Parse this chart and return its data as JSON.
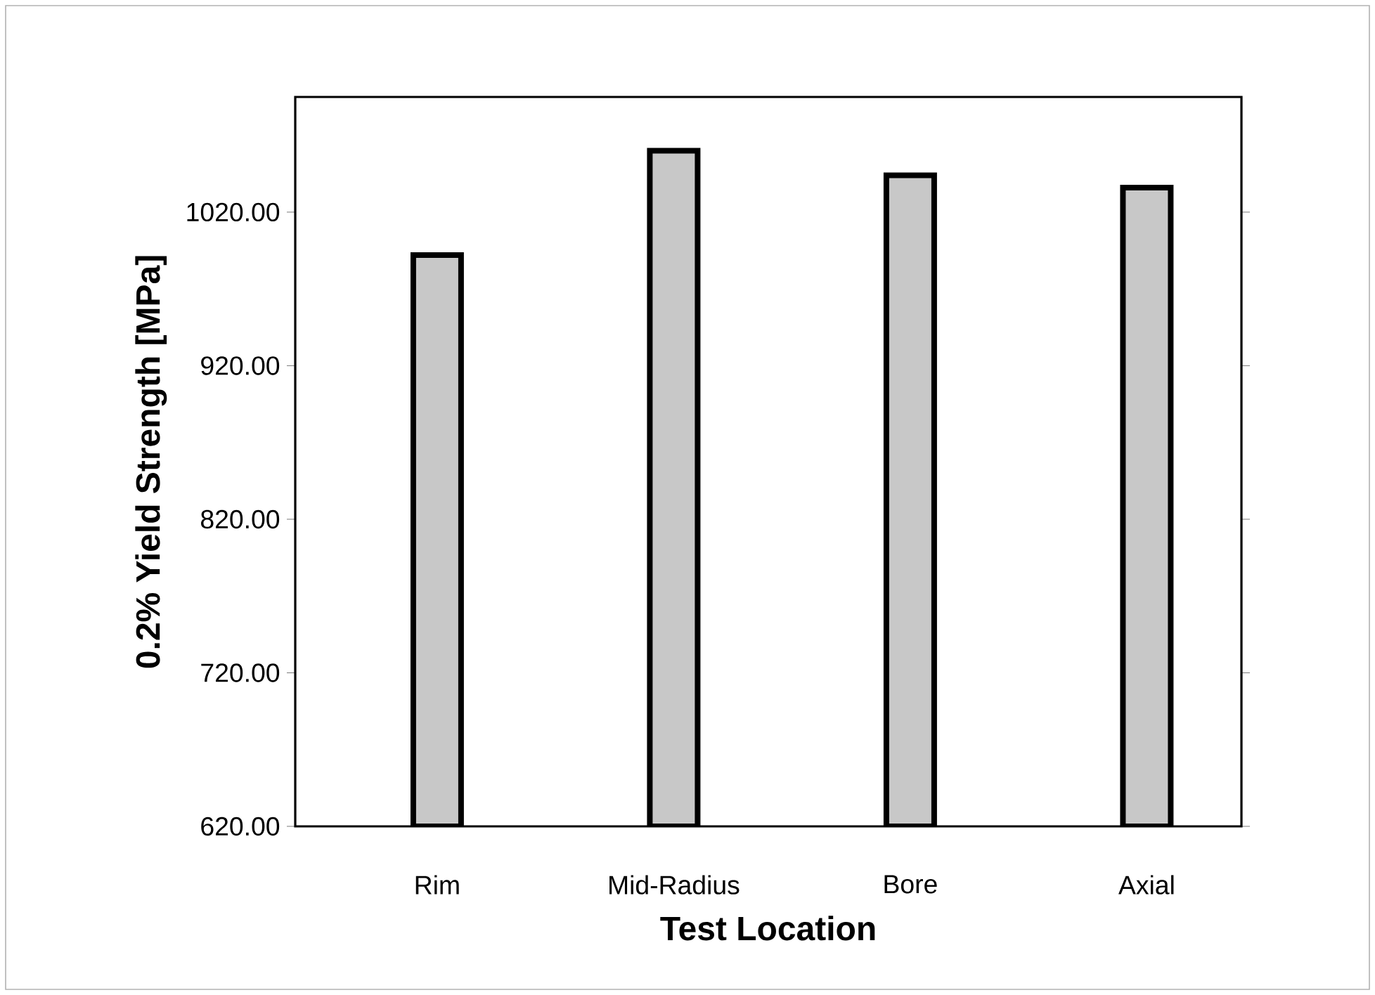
{
  "chart_data": {
    "type": "bar",
    "xlabel": "Test Location",
    "ylabel": "0.2% Yield Strength [MPa]",
    "categories": [
      "Rim",
      "Mid-Radius",
      "Bore",
      "Axial"
    ],
    "values": [
      992,
      1060,
      1044,
      1036
    ],
    "color": "#c8c8c8",
    "ylim": [
      620,
      1095
    ],
    "yticks": [
      {
        "value": 620,
        "label": "620.00"
      },
      {
        "value": 720,
        "label": "720.00"
      },
      {
        "value": 820,
        "label": "820.00"
      },
      {
        "value": 920,
        "label": "920.00"
      },
      {
        "value": 1020,
        "label": "1020.00"
      }
    ],
    "grid": false
  }
}
